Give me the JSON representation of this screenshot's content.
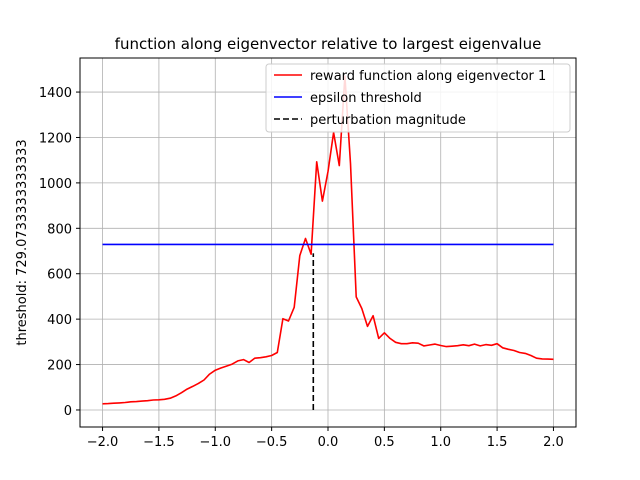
{
  "chart_data": {
    "type": "line",
    "title": "function along eigenvector relative to largest eigenvalue",
    "xlabel": "",
    "ylabel": "threshold: 729.0733333333333",
    "xlim": [
      -2.2,
      2.2
    ],
    "ylim": [
      -75,
      1550
    ],
    "xticks": [
      -2.0,
      -1.5,
      -1.0,
      -0.5,
      0.0,
      0.5,
      1.0,
      1.5,
      2.0
    ],
    "xtick_labels": [
      "−2.0",
      "−1.5",
      "−1.0",
      "−0.5",
      "0.0",
      "0.5",
      "1.0",
      "1.5",
      "2.0"
    ],
    "yticks": [
      0,
      200,
      400,
      600,
      800,
      1000,
      1200,
      1400
    ],
    "ytick_labels": [
      "0",
      "200",
      "400",
      "600",
      "800",
      "1000",
      "1200",
      "1400"
    ],
    "grid": true,
    "legend_position": "top-right",
    "series": [
      {
        "name": "reward function along eigenvector 1",
        "color": "#ff0000",
        "style": "solid",
        "x": [
          -2.0,
          -1.95,
          -1.9,
          -1.85,
          -1.8,
          -1.75,
          -1.7,
          -1.65,
          -1.6,
          -1.55,
          -1.5,
          -1.45,
          -1.4,
          -1.35,
          -1.3,
          -1.25,
          -1.2,
          -1.15,
          -1.1,
          -1.05,
          -1.0,
          -0.95,
          -0.9,
          -0.85,
          -0.8,
          -0.75,
          -0.7,
          -0.65,
          -0.6,
          -0.55,
          -0.5,
          -0.45,
          -0.4,
          -0.35,
          -0.3,
          -0.25,
          -0.2,
          -0.15,
          -0.1,
          -0.05,
          0.0,
          0.05,
          0.1,
          0.15,
          0.2,
          0.25,
          0.3,
          0.35,
          0.4,
          0.45,
          0.5,
          0.55,
          0.6,
          0.65,
          0.7,
          0.75,
          0.8,
          0.85,
          0.9,
          0.95,
          1.0,
          1.05,
          1.1,
          1.15,
          1.2,
          1.25,
          1.3,
          1.35,
          1.4,
          1.45,
          1.5,
          1.55,
          1.6,
          1.65,
          1.7,
          1.75,
          1.8,
          1.85,
          1.9,
          1.95,
          2.0
        ],
        "y": [
          27,
          28,
          30,
          31,
          33,
          36,
          37,
          39,
          41,
          44,
          45,
          47,
          52,
          62,
          76,
          92,
          104,
          117,
          132,
          158,
          175,
          185,
          193,
          202,
          216,
          222,
          209,
          228,
          230,
          234,
          240,
          253,
          402,
          392,
          452,
          680,
          755,
          686,
          1093,
          920,
          1050,
          1222,
          1076,
          1470,
          1085,
          498,
          447,
          368,
          415,
          315,
          340,
          315,
          298,
          292,
          292,
          296,
          294,
          282,
          286,
          290,
          284,
          279,
          281,
          283,
          287,
          283,
          290,
          282,
          288,
          285,
          292,
          274,
          267,
          262,
          253,
          249,
          240,
          228,
          225,
          224,
          223
        ]
      },
      {
        "name": "epsilon threshold",
        "color": "#0000ff",
        "style": "solid",
        "x": [
          -2.0,
          2.0
        ],
        "y": [
          729.0733333333333,
          729.0733333333333
        ]
      },
      {
        "name": "perturbation magnitude",
        "color": "#000000",
        "style": "dashed",
        "x": [
          -0.13,
          -0.13
        ],
        "y": [
          0,
          690
        ]
      }
    ]
  }
}
